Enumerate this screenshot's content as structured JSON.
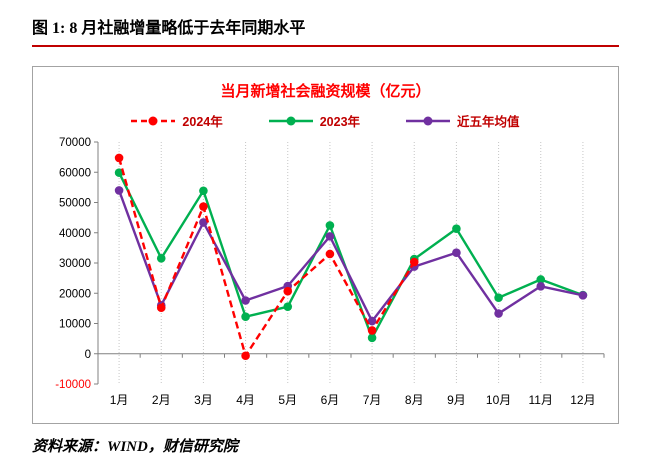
{
  "page": {
    "title": "图 1: 8 月社融增量略低于去年同期水平",
    "source": "资料来源：WIND，财信研究院"
  },
  "chart_data": {
    "type": "line",
    "title": "当月新增社会融资规模（亿元）",
    "categories": [
      "1月",
      "2月",
      "3月",
      "4月",
      "5月",
      "6月",
      "7月",
      "8月",
      "9月",
      "10月",
      "11月",
      "12月"
    ],
    "series": [
      {
        "name": "2024年",
        "color": "#ff0000",
        "style": "dashed",
        "values": [
          64740,
          15210,
          48670,
          -660,
          20690,
          32980,
          7710,
          30310
        ]
      },
      {
        "name": "2023年",
        "color": "#00b050",
        "style": "solid",
        "values": [
          59870,
          31560,
          53870,
          12240,
          15560,
          42410,
          5280,
          31300,
          41330,
          18520,
          24550,
          19400
        ]
      },
      {
        "name": "近五年均值",
        "color": "#7030a0",
        "style": "solid",
        "values": [
          54000,
          16000,
          43400,
          17600,
          22400,
          38800,
          10800,
          28800,
          33400,
          13300,
          22300,
          19300
        ]
      }
    ],
    "y_ticks": [
      70000,
      60000,
      50000,
      40000,
      30000,
      20000,
      10000,
      0,
      -10000
    ],
    "ylim": [
      -10000,
      70000
    ],
    "negative_tick_color": "#ff0000",
    "grid": "vertical-dotted",
    "legend_position": "top"
  },
  "colors": {
    "heading_rule": "#c00000",
    "chart_title": "#ff0000",
    "legend_text": "#c00000",
    "axis_line": "#808080",
    "gridline": "#c6c6c6",
    "border": "#a3a3a3"
  }
}
